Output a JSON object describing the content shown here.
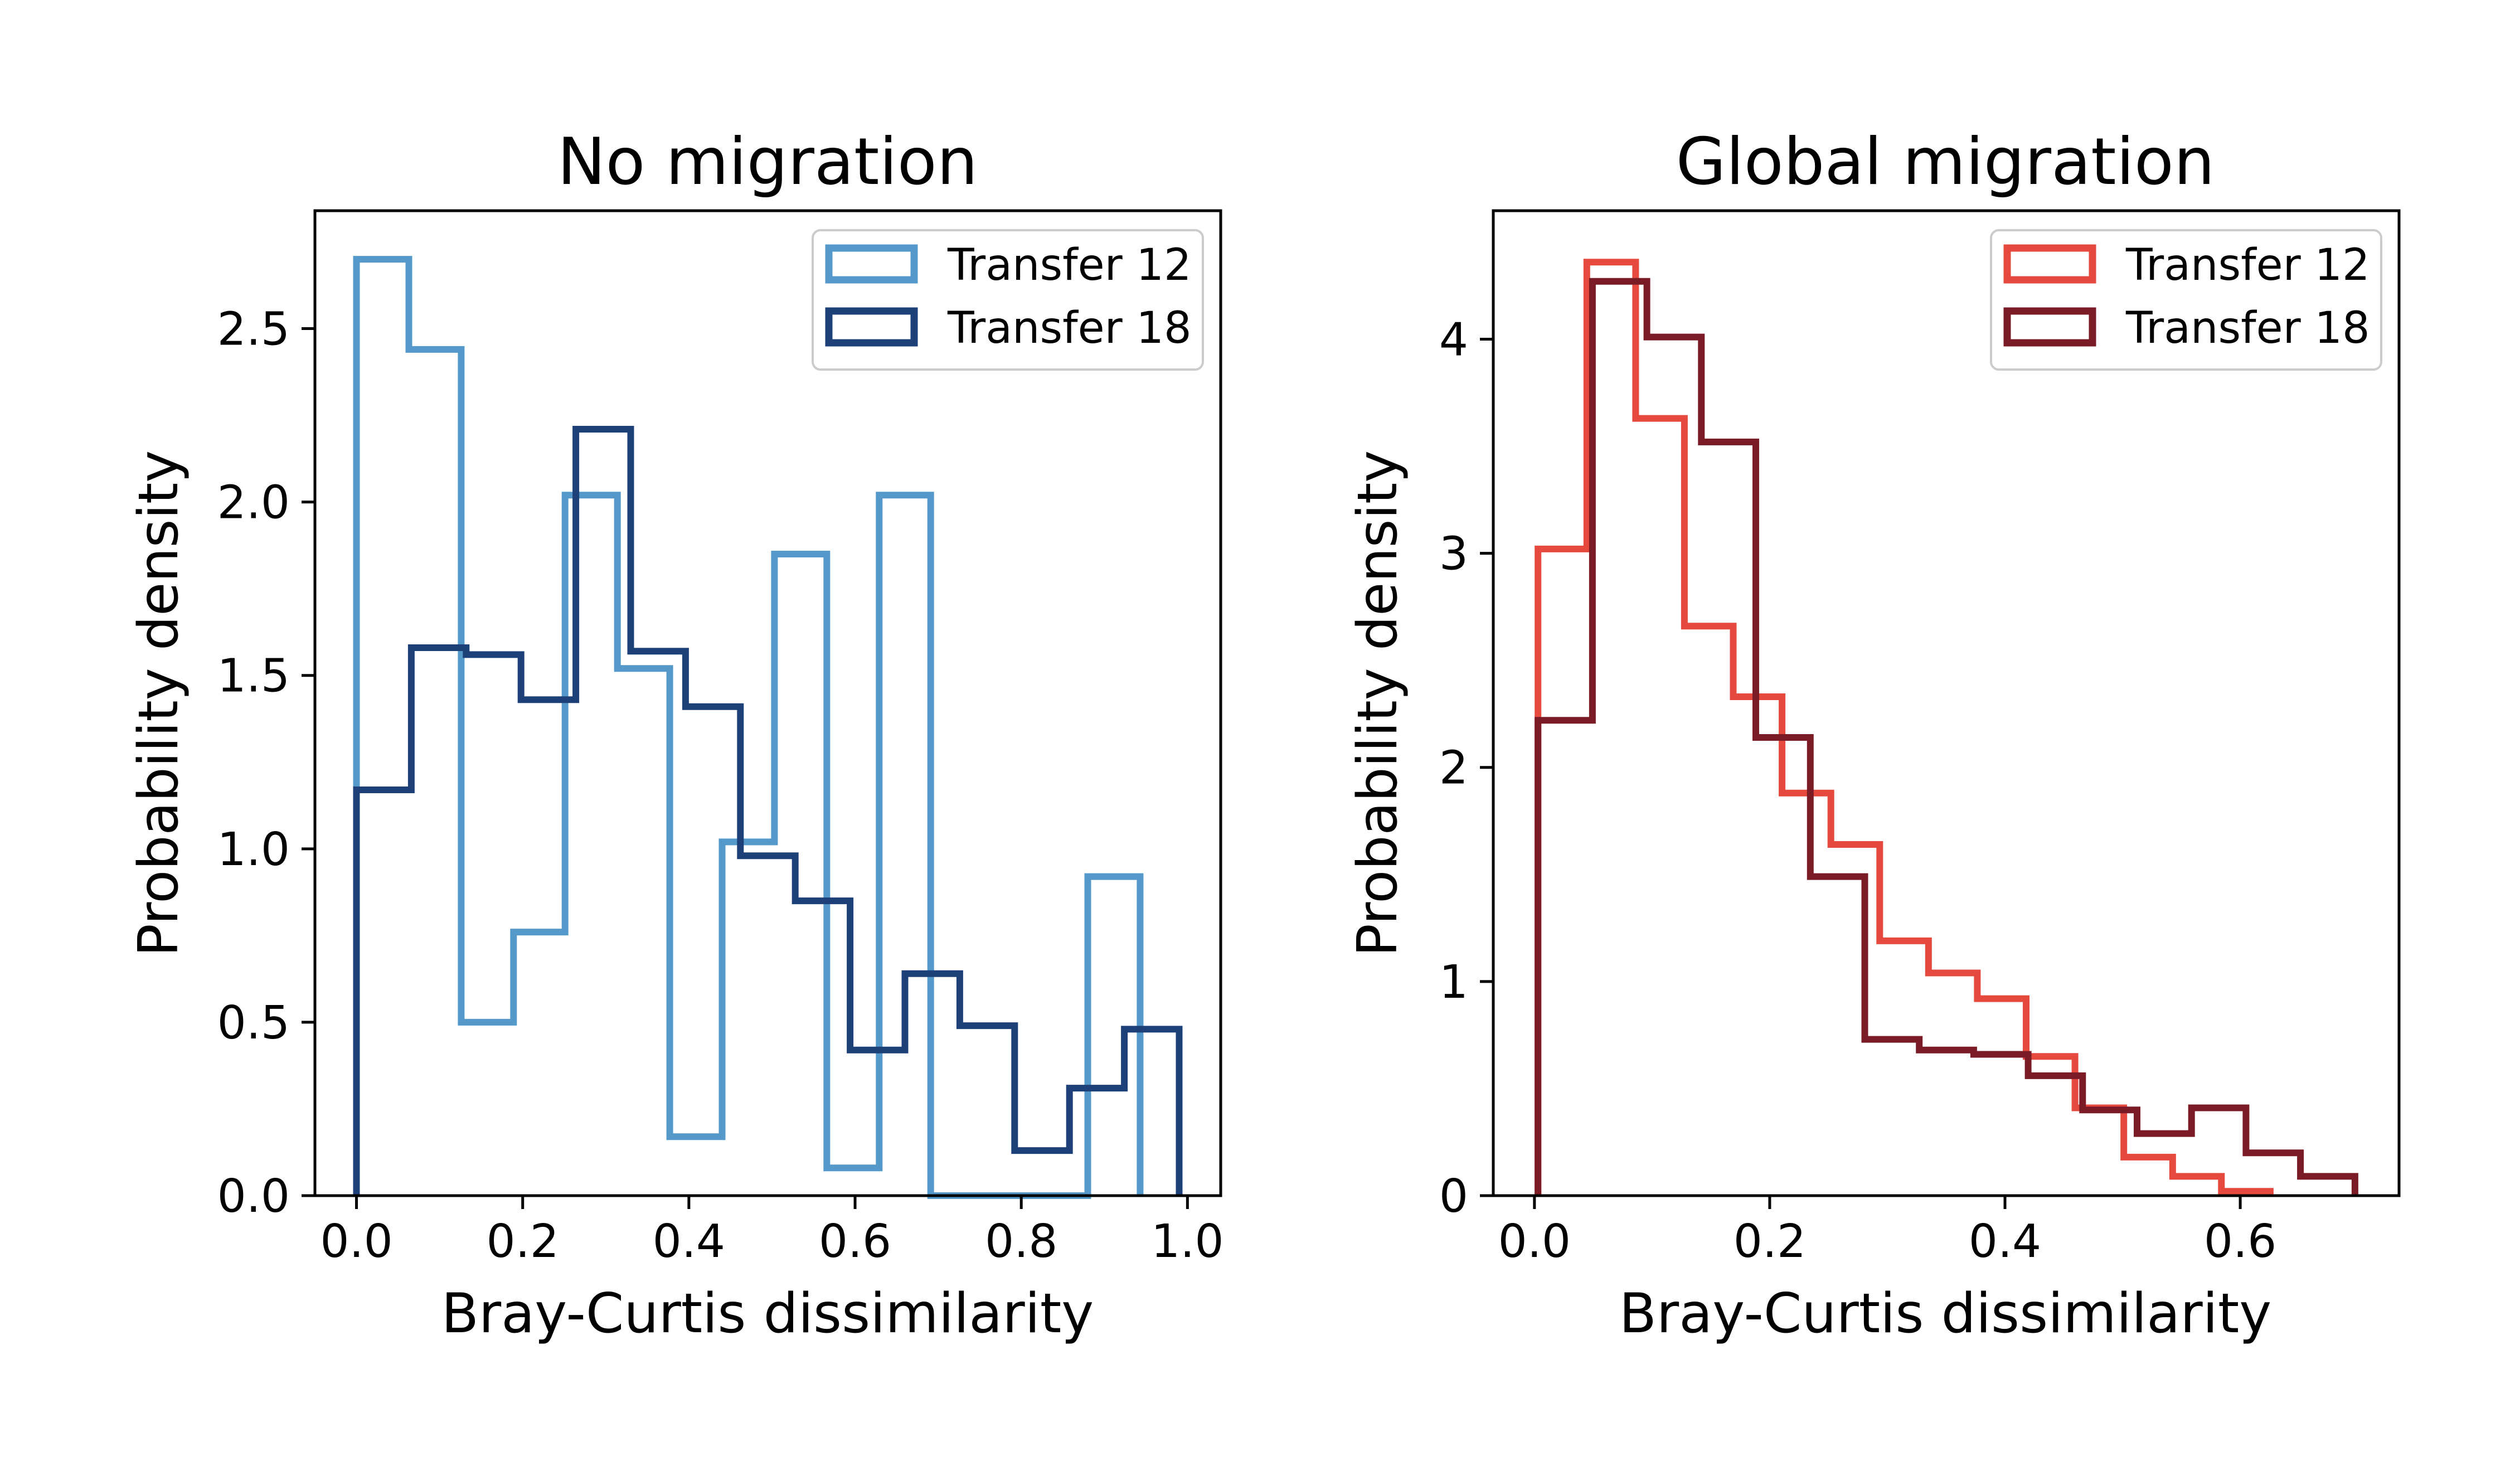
{
  "chart_data": [
    {
      "type": "histogram",
      "title": "No migration",
      "xlabel": "Bray-Curtis dissimilarity",
      "ylabel": "Probability density",
      "xlim": [
        -0.05,
        1.04
      ],
      "ylim": [
        0,
        2.84
      ],
      "xticks": [
        "0.0",
        "0.2",
        "0.4",
        "0.6",
        "0.8",
        "1.0"
      ],
      "xtick_values": [
        0.0,
        0.2,
        0.4,
        0.6,
        0.8,
        1.0
      ],
      "yticks": [
        "0.0",
        "0.5",
        "1.0",
        "1.5",
        "2.0",
        "2.5"
      ],
      "ytick_values": [
        0.0,
        0.5,
        1.0,
        1.5,
        2.0,
        2.5
      ],
      "legend_position": "top-right",
      "grid": false,
      "series": [
        {
          "name": "Transfer 12",
          "color": "#5499c9",
          "edges": [
            0.0,
            0.063,
            0.126,
            0.189,
            0.251,
            0.314,
            0.377,
            0.44,
            0.503,
            0.566,
            0.629,
            0.691,
            0.754,
            0.817,
            0.88,
            0.943
          ],
          "values": [
            2.7,
            2.44,
            0.5,
            0.76,
            2.02,
            1.52,
            0.17,
            1.02,
            1.85,
            0.08,
            2.02,
            0.0,
            0.0,
            0.0,
            0.92
          ]
        },
        {
          "name": "Transfer 18",
          "color": "#1e4079",
          "edges": [
            0.0,
            0.066,
            0.132,
            0.198,
            0.264,
            0.33,
            0.396,
            0.462,
            0.528,
            0.594,
            0.66,
            0.726,
            0.792,
            0.858,
            0.924,
            0.99
          ],
          "values": [
            1.17,
            1.58,
            1.56,
            1.43,
            2.21,
            1.57,
            1.41,
            0.98,
            0.85,
            0.42,
            0.64,
            0.49,
            0.13,
            0.31,
            0.48
          ]
        }
      ]
    },
    {
      "type": "histogram",
      "title": "Global migration",
      "xlabel": "Bray-Curtis dissimilarity",
      "ylabel": "Probability density",
      "xlim": [
        -0.035,
        0.735
      ],
      "ylim": [
        0,
        4.6
      ],
      "xticks": [
        "0.0",
        "0.2",
        "0.4",
        "0.6"
      ],
      "xtick_values": [
        0.0,
        0.2,
        0.4,
        0.6
      ],
      "yticks": [
        "0",
        "1",
        "2",
        "3",
        "4"
      ],
      "ytick_values": [
        0,
        1,
        2,
        3,
        4
      ],
      "legend_position": "top-right",
      "grid": false,
      "series": [
        {
          "name": "Transfer 12",
          "color": "#e64a3e",
          "edges": [
            0.003,
            0.0445,
            0.086,
            0.1275,
            0.169,
            0.2105,
            0.252,
            0.2935,
            0.335,
            0.3765,
            0.418,
            0.4595,
            0.501,
            0.5425,
            0.584,
            0.6255
          ],
          "values": [
            3.02,
            4.36,
            3.63,
            2.66,
            2.33,
            1.88,
            1.64,
            1.19,
            1.04,
            0.92,
            0.65,
            0.41,
            0.18,
            0.09,
            0.02
          ]
        },
        {
          "name": "Transfer 18",
          "color": "#7a1b26",
          "edges": [
            0.003,
            0.0493,
            0.0956,
            0.1419,
            0.1882,
            0.2345,
            0.2808,
            0.3271,
            0.3734,
            0.4197,
            0.466,
            0.5123,
            0.5586,
            0.6049,
            0.6512,
            0.6975
          ],
          "values": [
            2.22,
            4.27,
            4.01,
            3.52,
            2.14,
            1.49,
            0.73,
            0.68,
            0.66,
            0.56,
            0.4,
            0.29,
            0.41,
            0.2,
            0.09
          ]
        }
      ]
    }
  ]
}
